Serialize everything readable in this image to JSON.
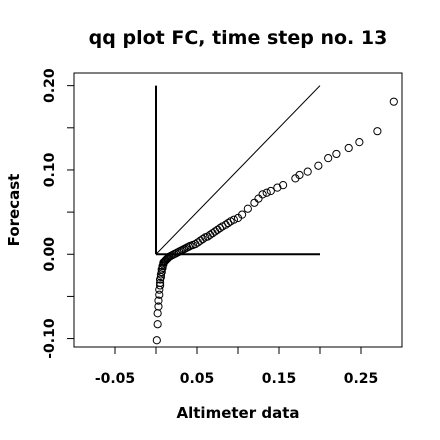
{
  "chart_data": {
    "type": "scatter",
    "title": "qq plot FC, time step no. 13",
    "xlabel": "Altimeter data",
    "ylabel": "Forecast",
    "xlim": [
      -0.1,
      0.3
    ],
    "ylim": [
      -0.11,
      0.215
    ],
    "x_ticks": [
      {
        "value": -0.05,
        "label": "-0.05"
      },
      {
        "value": 0.05,
        "label": "0.05"
      },
      {
        "value": 0.15,
        "label": "0.15"
      },
      {
        "value": 0.25,
        "label": "0.25"
      }
    ],
    "x_minor_ticks": [
      0.0,
      0.1,
      0.2
    ],
    "y_ticks": [
      {
        "value": -0.1,
        "label": "-0.10"
      },
      {
        "value": 0.0,
        "label": "0.00"
      },
      {
        "value": 0.1,
        "label": "0.10"
      },
      {
        "value": 0.2,
        "label": "0.20"
      }
    ],
    "y_minor_ticks": [
      -0.05,
      0.05,
      0.15
    ],
    "grid": false,
    "reference_lines": [
      {
        "name": "diagonal",
        "x": [
          0.0,
          0.2
        ],
        "y": [
          0.0,
          0.2
        ]
      },
      {
        "name": "vertical",
        "x": [
          0.0,
          0.0
        ],
        "y": [
          0.0,
          0.2
        ]
      },
      {
        "name": "horizontal",
        "x": [
          0.0,
          0.2
        ],
        "y": [
          0.0,
          0.0
        ]
      }
    ],
    "points": {
      "x": [
        0.001,
        0.002,
        0.002,
        0.003,
        0.003,
        0.004,
        0.004,
        0.005,
        0.005,
        0.005,
        0.006,
        0.006,
        0.007,
        0.007,
        0.008,
        0.008,
        0.009,
        0.009,
        0.01,
        0.011,
        0.012,
        0.013,
        0.014,
        0.015,
        0.016,
        0.018,
        0.02,
        0.022,
        0.024,
        0.026,
        0.028,
        0.03,
        0.032,
        0.034,
        0.036,
        0.038,
        0.04,
        0.042,
        0.045,
        0.048,
        0.051,
        0.054,
        0.057,
        0.06,
        0.063,
        0.066,
        0.069,
        0.072,
        0.075,
        0.078,
        0.081,
        0.085,
        0.088,
        0.091,
        0.095,
        0.1,
        0.105,
        0.112,
        0.12,
        0.125,
        0.13,
        0.135,
        0.14,
        0.148,
        0.155,
        0.17,
        0.175,
        0.185,
        0.198,
        0.21,
        0.22,
        0.235,
        0.248,
        0.27,
        0.29
      ],
      "y": [
        -0.102,
        -0.083,
        -0.07,
        -0.062,
        -0.055,
        -0.048,
        -0.042,
        -0.037,
        -0.034,
        -0.03,
        -0.027,
        -0.024,
        -0.021,
        -0.018,
        -0.016,
        -0.014,
        -0.012,
        -0.01,
        -0.009,
        -0.008,
        -0.007,
        -0.006,
        -0.005,
        -0.004,
        -0.003,
        -0.002,
        -0.001,
        0.0,
        0.001,
        0.002,
        0.003,
        0.004,
        0.005,
        0.006,
        0.007,
        0.008,
        0.009,
        0.01,
        0.011,
        0.012,
        0.014,
        0.016,
        0.018,
        0.02,
        0.021,
        0.023,
        0.025,
        0.027,
        0.029,
        0.031,
        0.033,
        0.035,
        0.037,
        0.039,
        0.041,
        0.043,
        0.047,
        0.054,
        0.061,
        0.066,
        0.071,
        0.073,
        0.075,
        0.079,
        0.082,
        0.09,
        0.094,
        0.098,
        0.105,
        0.114,
        0.119,
        0.126,
        0.133,
        0.146,
        0.181
      ]
    }
  }
}
